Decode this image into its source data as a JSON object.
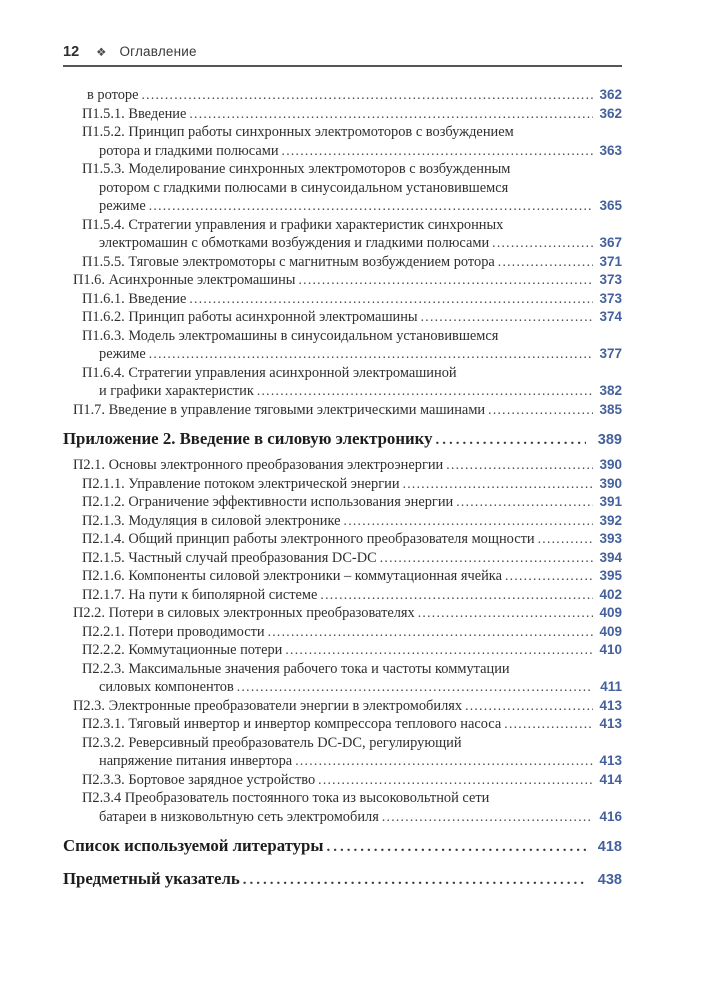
{
  "header": {
    "page_number": "12",
    "ornament": "❖",
    "title": "Оглавление"
  },
  "colors": {
    "page_number_accent": "#45619d",
    "body_text": "#2f2f2f",
    "heading_text": "#1d1d1d",
    "rule": "#565656"
  },
  "toc": {
    "entries": [
      {
        "level": 2,
        "cont": true,
        "lines": [
          "в роторе"
        ],
        "page": "362"
      },
      {
        "level": 3,
        "lines": [
          "П1.5.1. Введение"
        ],
        "page": "362"
      },
      {
        "level": 3,
        "lines": [
          "П1.5.2. Принцип работы синхронных электромоторов с возбуждением",
          "ротора и гладкими полюсами"
        ],
        "page": "363"
      },
      {
        "level": 3,
        "lines": [
          "П1.5.3. Моделирование синхронных электромоторов с возбужденным",
          "ротором с гладкими полюсами в синусоидальном установившемся",
          "режиме"
        ],
        "page": "365"
      },
      {
        "level": 3,
        "lines": [
          "П1.5.4. Стратегии управления и графики характеристик синхронных",
          "электромашин с обмотками возбуждения и гладкими полюсами"
        ],
        "page": "367"
      },
      {
        "level": 3,
        "lines": [
          "П1.5.5. Тяговые электромоторы с магнитным возбуждением ротора"
        ],
        "page": "371"
      },
      {
        "level": 2,
        "lines": [
          "П1.6. Асинхронные электромашины"
        ],
        "page": "373"
      },
      {
        "level": 3,
        "lines": [
          "П1.6.1. Введение"
        ],
        "page": "373"
      },
      {
        "level": 3,
        "lines": [
          "П1.6.2. Принцип работы асинхронной электромашины"
        ],
        "page": "374"
      },
      {
        "level": 3,
        "lines": [
          "П1.6.3. Модель электромашины в синусоидальном установившемся",
          "режиме"
        ],
        "page": "377"
      },
      {
        "level": 3,
        "lines": [
          "П1.6.4. Стратегии управления асинхронной электромашиной",
          "и графики характеристик"
        ],
        "page": "382"
      },
      {
        "level": 2,
        "lines": [
          "П1.7. Введение в управление тяговыми электрическими машинами"
        ],
        "page": "385"
      },
      {
        "level": 1,
        "lines": [
          "Приложение 2. Введение в силовую электронику"
        ],
        "page": "389"
      },
      {
        "level": 2,
        "lines": [
          "П2.1. Основы электронного преобразования электроэнергии"
        ],
        "page": "390"
      },
      {
        "level": 3,
        "lines": [
          "П2.1.1. Управление потоком электрической энергии"
        ],
        "page": "390"
      },
      {
        "level": 3,
        "lines": [
          "П2.1.2. Ограничение эффективности использования энергии"
        ],
        "page": "391"
      },
      {
        "level": 3,
        "lines": [
          "П2.1.3. Модуляция в силовой электронике"
        ],
        "page": "392"
      },
      {
        "level": 3,
        "lines": [
          "П2.1.4. Общий принцип работы электронного преобразователя мощности"
        ],
        "page": "393"
      },
      {
        "level": 3,
        "lines": [
          "П2.1.5. Частный случай преобразования DC-DC"
        ],
        "page": "394"
      },
      {
        "level": 3,
        "lines": [
          "П2.1.6. Компоненты силовой электроники – коммутационная ячейка"
        ],
        "page": "395"
      },
      {
        "level": 3,
        "lines": [
          "П2.1.7. На пути к биполярной системе"
        ],
        "page": "402"
      },
      {
        "level": 2,
        "lines": [
          "П2.2. Потери в силовых электронных преобразователях"
        ],
        "page": "409"
      },
      {
        "level": 3,
        "lines": [
          "П2.2.1. Потери проводимости"
        ],
        "page": "409"
      },
      {
        "level": 3,
        "lines": [
          "П2.2.2. Коммутационные потери"
        ],
        "page": "410"
      },
      {
        "level": 3,
        "lines": [
          "П2.2.3. Максимальные значения рабочего тока и частоты коммутации",
          "силовых компонентов"
        ],
        "page": "411"
      },
      {
        "level": 2,
        "lines": [
          "П2.3. Электронные преобразователи энергии в электромобилях"
        ],
        "page": "413"
      },
      {
        "level": 3,
        "lines": [
          "П2.3.1. Тяговый инвертор и инвертор компрессора теплового насоса"
        ],
        "page": "413"
      },
      {
        "level": 3,
        "lines": [
          "П2.3.2. Реверсивный преобразователь DC-DC, регулирующий",
          "напряжение питания инвертора"
        ],
        "page": "413"
      },
      {
        "level": 3,
        "lines": [
          "П2.3.3. Бортовое зарядное устройство"
        ],
        "page": "414"
      },
      {
        "level": 3,
        "lines": [
          "П2.3.4 Преобразователь постоянного тока из высоковольтной сети",
          "батареи в низковольтную сеть электромобиля"
        ],
        "page": "416"
      },
      {
        "level": 1,
        "lines": [
          "Список используемой литературы"
        ],
        "page": "418"
      },
      {
        "level": 1,
        "lines": [
          "Предметный указатель"
        ],
        "page": "438"
      }
    ]
  }
}
